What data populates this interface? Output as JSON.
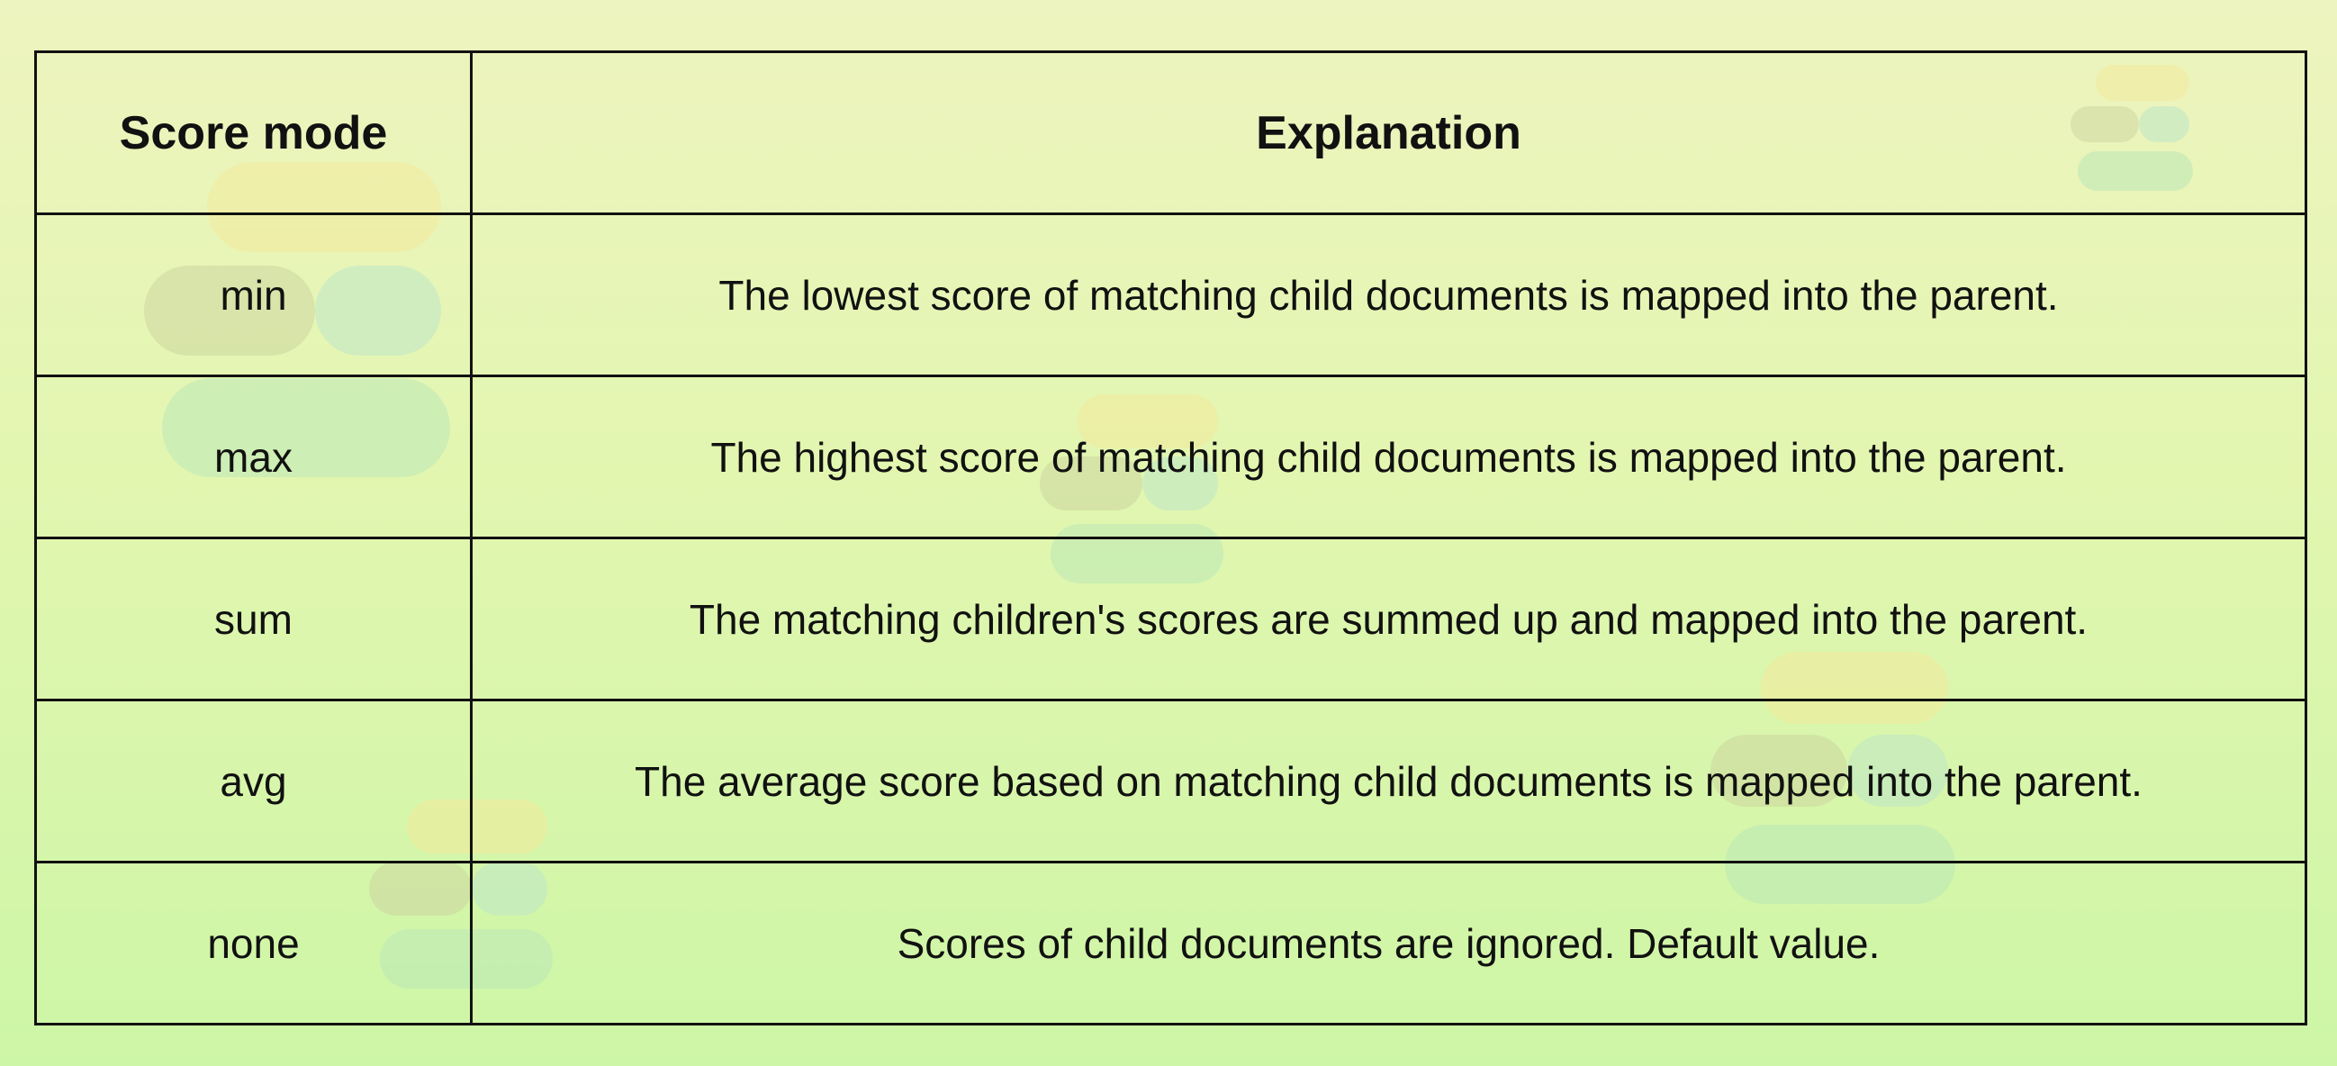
{
  "table": {
    "headers": [
      "Score mode",
      "Explanation"
    ],
    "rows": [
      {
        "mode": "min",
        "explanation": "The lowest score of matching child documents is mapped into the parent."
      },
      {
        "mode": "max",
        "explanation": "The highest score of matching child documents is mapped into the parent."
      },
      {
        "mode": "sum",
        "explanation": "The matching children's scores are summed up and mapped into the parent."
      },
      {
        "mode": "avg",
        "explanation": "The average score based on matching child documents is mapped into the parent."
      },
      {
        "mode": "none",
        "explanation": "Scores of child documents are ignored. Default value."
      }
    ]
  },
  "background": {
    "watermark_icon": "elastic-logo-icon",
    "colors": {
      "top": "#eef4bf",
      "bottom": "#cdf6a6",
      "border": "#111111",
      "text": "#111111"
    }
  }
}
